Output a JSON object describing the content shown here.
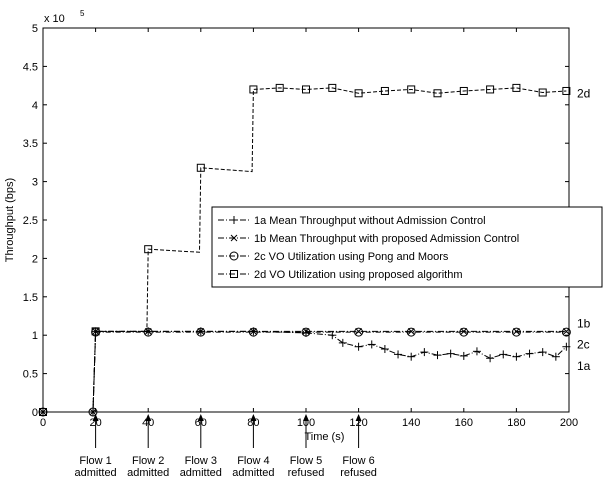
{
  "chart_data": {
    "type": "line",
    "xlabel": "Time (s)",
    "ylabel": "Throughput (bps)",
    "y_multiplier": "x 10",
    "y_exponent": "5",
    "xlim": [
      0,
      200
    ],
    "ylim": [
      0,
      5
    ],
    "x_ticks": [
      "0",
      "20",
      "40",
      "60",
      "80",
      "100",
      "120",
      "140",
      "160",
      "180",
      "200"
    ],
    "y_ticks": [
      "0",
      "0.5",
      "1",
      "1.5",
      "2",
      "2.5",
      "3",
      "3.5",
      "4",
      "4.5",
      "5"
    ],
    "legend_position": "center-right",
    "legend": [
      "1a Mean Throughput without Admission Control",
      "1b Mean Throughput with proposed Admission Control",
      "2c VO Utilization using Pong and Moors",
      "2d VO Utilization using proposed algorithm"
    ],
    "series": [
      {
        "name": "1a Mean Throughput without Admission Control",
        "tag": "1a",
        "marker": "plus",
        "x": [
          0,
          19,
          20,
          40,
          60,
          80,
          100,
          110,
          114,
          120,
          125,
          130,
          135,
          140,
          145,
          150,
          155,
          160,
          165,
          170,
          175,
          180,
          185,
          190,
          195,
          199
        ],
        "y": [
          0,
          0,
          1.05,
          1.05,
          1.05,
          1.05,
          1.03,
          1.0,
          0.9,
          0.85,
          0.88,
          0.82,
          0.75,
          0.72,
          0.78,
          0.74,
          0.76,
          0.73,
          0.79,
          0.7,
          0.75,
          0.72,
          0.76,
          0.78,
          0.72,
          0.85
        ]
      },
      {
        "name": "1b Mean Throughput with proposed Admission Control",
        "tag": "1b",
        "marker": "x",
        "x": [
          0,
          19,
          20,
          40,
          60,
          80,
          100,
          120,
          140,
          160,
          180,
          199
        ],
        "y": [
          0,
          0,
          1.05,
          1.05,
          1.05,
          1.05,
          1.05,
          1.05,
          1.05,
          1.05,
          1.05,
          1.05
        ]
      },
      {
        "name": "2c VO Utilization using Pong and Moors",
        "tag": "2c",
        "marker": "circle",
        "x": [
          0,
          19,
          20,
          40,
          60,
          80,
          100,
          120,
          140,
          160,
          180,
          199
        ],
        "y": [
          0,
          0,
          1.04,
          1.04,
          1.04,
          1.04,
          1.04,
          1.04,
          1.04,
          1.04,
          1.04,
          1.04
        ]
      },
      {
        "name": "2d VO Utilization using proposed algorithm",
        "tag": "2d",
        "marker": "square",
        "x": [
          0,
          19,
          20,
          39.5,
          40,
          59.5,
          60,
          79.5,
          80,
          90,
          100,
          110,
          120,
          130,
          140,
          150,
          160,
          170,
          180,
          190,
          199
        ],
        "y": [
          0,
          0,
          1.05,
          1.05,
          2.12,
          2.08,
          3.18,
          3.13,
          4.2,
          4.22,
          4.2,
          4.22,
          4.15,
          4.18,
          4.2,
          4.15,
          4.18,
          4.2,
          4.22,
          4.16,
          4.18
        ]
      }
    ],
    "annotations": [
      {
        "x": 20,
        "line1": "Flow 1",
        "line2": "admitted"
      },
      {
        "x": 40,
        "line1": "Flow 2",
        "line2": "admitted"
      },
      {
        "x": 60,
        "line1": "Flow 3",
        "line2": "admitted"
      },
      {
        "x": 80,
        "line1": "Flow 4",
        "line2": "admitted"
      },
      {
        "x": 100,
        "line1": "Flow 5",
        "line2": "refused"
      },
      {
        "x": 120,
        "line1": "Flow 6",
        "line2": "refused"
      }
    ]
  }
}
